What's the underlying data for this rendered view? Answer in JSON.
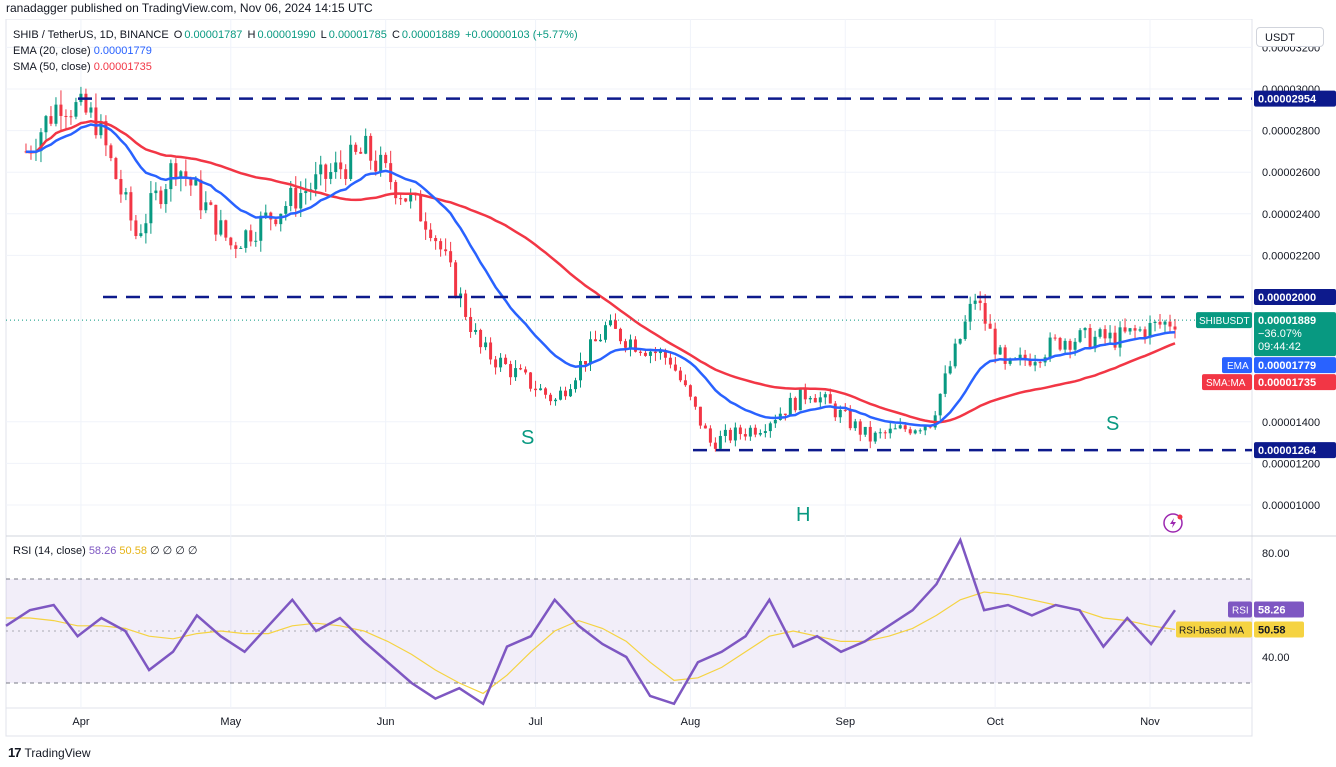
{
  "header": {
    "published": "ranadagger published on TradingView.com, Nov 06, 2024 14:15 UTC"
  },
  "legend": {
    "symbol": "SHIB / TetherUS, 1D, BINANCE",
    "o_label": "O",
    "o": "0.00001787",
    "h_label": "H",
    "h": "0.00001990",
    "l_label": "L",
    "l": "0.00001785",
    "c_label": "C",
    "c": "0.00001889",
    "change": "+0.00000103 (+5.77%)",
    "ema_label": "EMA (20, close)",
    "ema_value": "0.00001779",
    "sma_label": "SMA (50, close)",
    "sma_value": "0.00001735"
  },
  "rsi_legend": {
    "label": "RSI (14, close)",
    "rsi": "58.26",
    "ma": "50.58",
    "extras": "∅ ∅ ∅ ∅"
  },
  "currency_button": "USDT",
  "footer": {
    "logo": "17",
    "brand": "TradingView"
  },
  "annotations": {
    "left_shoulder": "S",
    "head": "H",
    "right_shoulder": "S"
  },
  "price_tags": {
    "resistance_top": "0.00002954",
    "neckline": "0.00002000",
    "support": "0.00001264",
    "symbol_tag": "SHIBUSDT",
    "last_price": "0.00001889",
    "last_change": "−36.07%",
    "countdown": "09:44:42",
    "ema_tag": "EMA",
    "ema_value": "0.00001779",
    "sma_tag": "SMA:MA",
    "sma_value": "0.00001735"
  },
  "rsi_tags": {
    "rsi_tag": "RSI",
    "rsi_value": "58.26",
    "ma_tag": "RSI-based MA",
    "ma_value": "50.58"
  },
  "colors": {
    "up": "#089981",
    "down": "#f23645",
    "ema": "#2962ff",
    "sma": "#f23645",
    "level": "#0d1a8c",
    "rsi": "#7e57c2",
    "rsi_ma": "#f5d342",
    "label": "#089981"
  },
  "chart_data": [
    {
      "type": "candlestick",
      "title": "SHIB / TetherUS, 1D, BINANCE",
      "y_ticks": [
        "0.00003200",
        "0.00003000",
        "0.00002800",
        "0.00002600",
        "0.00002400",
        "0.00002200",
        "0.00001400",
        "0.00001200",
        "0.00001000"
      ],
      "ylim": [
        9.6e-06,
        3.36e-05
      ],
      "x_ticks": [
        "Apr",
        "May",
        "Jun",
        "Jul",
        "Aug",
        "Sep",
        "Oct",
        "Nov"
      ],
      "horizontal_levels": [
        2.954e-05,
        2e-05,
        1.264e-05
      ],
      "last_close": 1.889e-05,
      "close_approx": [
        {
          "date": "2024-03-21",
          "close": 2.7e-05
        },
        {
          "date": "2024-03-28",
          "close": 2.95e-05
        },
        {
          "date": "2024-04-04",
          "close": 2.85e-05
        },
        {
          "date": "2024-04-12",
          "close": 2.3e-05
        },
        {
          "date": "2024-04-20",
          "close": 2.65e-05
        },
        {
          "date": "2024-05-01",
          "close": 2.25e-05
        },
        {
          "date": "2024-05-15",
          "close": 2.5e-05
        },
        {
          "date": "2024-05-28",
          "close": 2.7e-05
        },
        {
          "date": "2024-06-10",
          "close": 2.35e-05
        },
        {
          "date": "2024-06-20",
          "close": 1.75e-05
        },
        {
          "date": "2024-07-05",
          "close": 1.5e-05
        },
        {
          "date": "2024-07-15",
          "close": 1.85e-05
        },
        {
          "date": "2024-07-28",
          "close": 1.7e-05
        },
        {
          "date": "2024-08-05",
          "close": 1.3e-05
        },
        {
          "date": "2024-08-15",
          "close": 1.38e-05
        },
        {
          "date": "2024-08-25",
          "close": 1.55e-05
        },
        {
          "date": "2024-09-06",
          "close": 1.32e-05
        },
        {
          "date": "2024-09-18",
          "close": 1.4e-05
        },
        {
          "date": "2024-09-27",
          "close": 2e-05
        },
        {
          "date": "2024-10-03",
          "close": 1.65e-05
        },
        {
          "date": "2024-10-15",
          "close": 1.8e-05
        },
        {
          "date": "2024-10-25",
          "close": 1.8e-05
        },
        {
          "date": "2024-11-06",
          "close": 1.889e-05
        }
      ],
      "series": [
        {
          "name": "EMA (20, close)",
          "last": 1.779e-05
        },
        {
          "name": "SMA (50, close)",
          "last": 1.735e-05
        }
      ]
    },
    {
      "type": "line",
      "title": "RSI (14, close)",
      "y_ticks": [
        "80.00",
        "40.00"
      ],
      "ylim": [
        16,
        86
      ],
      "bands": [
        70,
        30
      ],
      "x_ticks": [
        "Apr",
        "May",
        "Jun",
        "Jul",
        "Aug",
        "Sep",
        "Oct",
        "Nov"
      ],
      "series": [
        {
          "name": "RSI",
          "last": 58.26,
          "values_approx": [
            52,
            58,
            60,
            48,
            55,
            50,
            35,
            42,
            56,
            48,
            42,
            52,
            62,
            50,
            55,
            46,
            38,
            30,
            24,
            28,
            22,
            44,
            48,
            62,
            52,
            45,
            40,
            25,
            22,
            38,
            42,
            48,
            62,
            44,
            48,
            42,
            46,
            52,
            58,
            68,
            85,
            58,
            60,
            56,
            60,
            58,
            44,
            55,
            45,
            58
          ]
        },
        {
          "name": "RSI-based MA",
          "last": 50.58,
          "values_approx": [
            55,
            55,
            54,
            52,
            52,
            51,
            48,
            47,
            49,
            50,
            49,
            49,
            52,
            53,
            52,
            50,
            46,
            41,
            35,
            30,
            26,
            33,
            42,
            50,
            54,
            51,
            46,
            38,
            31,
            32,
            36,
            42,
            48,
            50,
            48,
            46,
            46,
            48,
            51,
            56,
            62,
            65,
            64,
            62,
            60,
            58,
            55,
            54,
            52,
            50.58
          ]
        }
      ]
    }
  ]
}
